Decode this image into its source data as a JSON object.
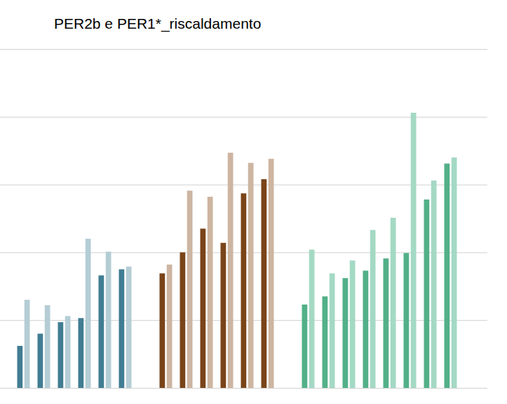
{
  "chart_data": {
    "type": "bar",
    "title": "PER2b e PER1*_riscaldamento",
    "categories": [
      null,
      null,
      null,
      null,
      null,
      null,
      null,
      null,
      null,
      null,
      null,
      null,
      null,
      null,
      null,
      null,
      null,
      null,
      null,
      null,
      null,
      null
    ],
    "series": [
      {
        "colors": [
          "#417d92",
          "#417d92",
          "#417d92",
          "#417d92",
          "#417d92",
          "#417d92",
          null,
          "#7a4419",
          "#7a4419",
          "#7a4419",
          "#7a4419",
          "#7a4419",
          "#7a4419",
          null,
          "#52b088",
          "#52b088",
          "#52b088",
          "#52b088",
          "#52b088",
          "#52b088",
          "#52b088",
          "#52b088"
        ],
        "values": [
          0.62,
          0.8,
          0.97,
          1.03,
          1.66,
          1.75,
          null,
          1.69,
          2.0,
          2.35,
          2.14,
          2.87,
          3.08,
          null,
          1.23,
          1.35,
          1.62,
          1.73,
          1.91,
          1.99,
          2.78,
          3.31
        ]
      },
      {
        "colors": [
          "#b4cdd5",
          "#b4cdd5",
          "#b4cdd5",
          "#b4cdd5",
          "#b4cdd5",
          "#b4cdd5",
          null,
          "#cdb5a1",
          "#cdb5a1",
          "#cdb5a1",
          "#cdb5a1",
          "#cdb5a1",
          "#cdb5a1",
          null,
          "#a4d9c4",
          "#a4d9c4",
          "#a4d9c4",
          "#a4d9c4",
          "#a4d9c4",
          "#a4d9c4",
          "#a4d9c4",
          "#a4d9c4"
        ],
        "values": [
          1.3,
          1.22,
          1.06,
          2.2,
          2.01,
          1.79,
          null,
          1.82,
          2.91,
          2.82,
          3.47,
          3.32,
          3.38,
          null,
          2.04,
          1.69,
          1.88,
          2.33,
          2.51,
          4.06,
          3.06,
          3.4
        ]
      }
    ],
    "ylim": [
      0,
      5
    ],
    "yticks": [
      0,
      1,
      2,
      3,
      4,
      5
    ],
    "grid": true,
    "tick_labels": false
  }
}
